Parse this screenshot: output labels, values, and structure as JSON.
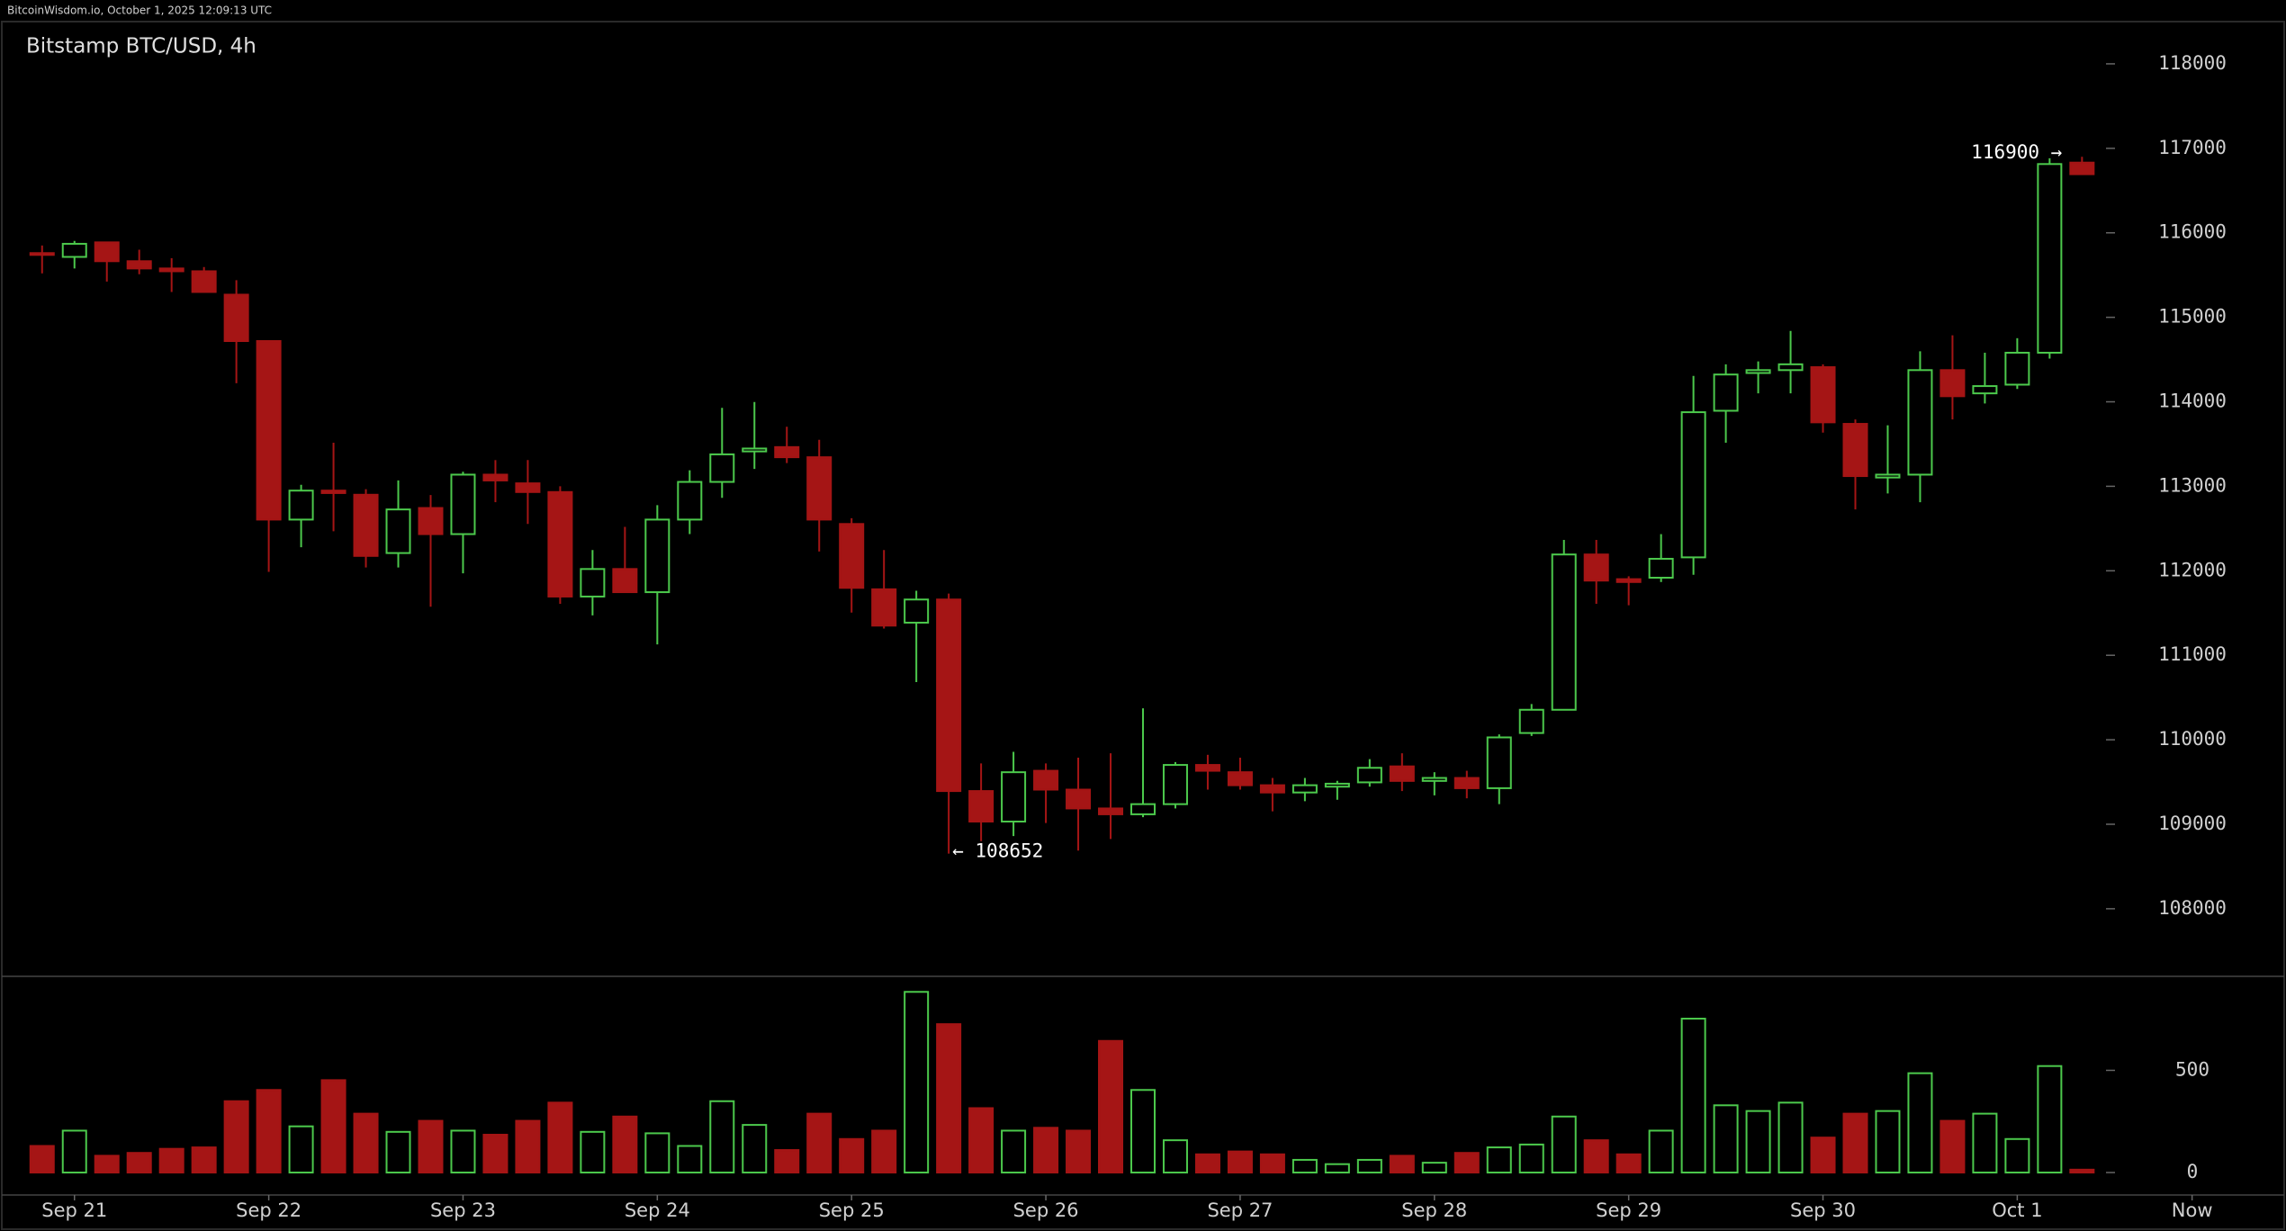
{
  "chart_data": {
    "type": "candlestick",
    "header": "BitcoinWisdom.io, October 1, 2025 12:09:13 UTC",
    "title": "Bitstamp BTC/USD, 4h",
    "up_color": "#4cc94c",
    "down_color": "#a51515",
    "annotations": {
      "low": "← 108652",
      "high": "116900 →"
    },
    "xlim": [
      -1.3,
      69.3
    ],
    "xticks": [
      {
        "value": 1,
        "label": "Sep 21"
      },
      {
        "value": 7,
        "label": "Sep 22"
      },
      {
        "value": 13,
        "label": "Sep 23"
      },
      {
        "value": 19,
        "label": "Sep 24"
      },
      {
        "value": 25,
        "label": "Sep 25"
      },
      {
        "value": 31,
        "label": "Sep 26"
      },
      {
        "value": 37,
        "label": "Sep 27"
      },
      {
        "value": 43,
        "label": "Sep 28"
      },
      {
        "value": 49,
        "label": "Sep 29"
      },
      {
        "value": 55,
        "label": "Sep 30"
      },
      {
        "value": 61,
        "label": "Oct 1"
      },
      {
        "value": 66.4,
        "label": "Now"
      }
    ],
    "ylim": [
      107200,
      118500
    ],
    "yticks": [
      108000,
      109000,
      110000,
      111000,
      112000,
      113000,
      114000,
      115000,
      116000,
      117000,
      118000
    ],
    "volume_ylim": [
      -110,
      960
    ],
    "volume_yticks": [
      0,
      500
    ],
    "open": [
      115760,
      115715,
      115887,
      115664,
      115578,
      115545,
      115268,
      114719,
      112606,
      112949,
      112900,
      112210,
      112743,
      112434,
      113138,
      113035,
      112932,
      111695,
      112021,
      111747,
      112606,
      113052,
      113413,
      113464,
      113344,
      112554,
      111781,
      111386,
      111660,
      109393,
      109032,
      109633,
      109410,
      109187,
      109118,
      109238,
      109702,
      109616,
      109462,
      109376,
      109445,
      109496,
      109685,
      109513,
      109548,
      109427,
      110080,
      110355,
      112193,
      111901,
      111918,
      112159,
      113894,
      114341,
      114375,
      114410,
      113739,
      113104,
      113138,
      114375,
      114100,
      114203,
      114581,
      116831
    ],
    "high": [
      115850,
      115904,
      115887,
      115800,
      115700,
      115595,
      115440,
      114719,
      113018,
      113516,
      112966,
      113069,
      112897,
      113172,
      113310,
      113310,
      113000,
      112245,
      112520,
      112777,
      113190,
      113928,
      113997,
      113705,
      113550,
      112623,
      112245,
      111764,
      111730,
      109720,
      109857,
      109720,
      109788,
      109840,
      110372,
      109736,
      109822,
      109788,
      109548,
      109548,
      109514,
      109771,
      109840,
      109616,
      109633,
      110063,
      110423,
      112365,
      112365,
      111935,
      112434,
      114306,
      114444,
      114478,
      114839,
      114444,
      113791,
      113722,
      114598,
      114787,
      114581,
      114753,
      116883,
      116900
    ],
    "low": [
      115520,
      115578,
      115423,
      115510,
      115300,
      115300,
      114220,
      111987,
      112279,
      112468,
      112039,
      112039,
      111575,
      111970,
      112812,
      112554,
      111609,
      111472,
      111747,
      111128,
      112434,
      112863,
      113206,
      113275,
      112228,
      111506,
      111317,
      110682,
      108652,
      108800,
      108860,
      109015,
      108688,
      108826,
      109084,
      109187,
      109410,
      109410,
      109153,
      109273,
      109290,
      109445,
      109393,
      109342,
      109307,
      109238,
      110045,
      110355,
      111609,
      111592,
      111867,
      111953,
      113516,
      114100,
      114100,
      113636,
      112726,
      112915,
      112812,
      113791,
      113980,
      114152,
      114512,
      116694
    ],
    "close": [
      115740,
      115870,
      115664,
      115578,
      115545,
      115300,
      114719,
      112606,
      112949,
      112920,
      112176,
      112726,
      112434,
      113138,
      113069,
      112932,
      111695,
      112021,
      111747,
      112606,
      113052,
      113378,
      113447,
      113344,
      112606,
      111798,
      111351,
      111660,
      109393,
      109032,
      109616,
      109410,
      109187,
      109118,
      109238,
      109702,
      109633,
      109462,
      109376,
      109462,
      109480,
      109668,
      109513,
      109548,
      109427,
      110028,
      110355,
      112193,
      111884,
      111867,
      112142,
      113877,
      114323,
      114375,
      114444,
      113757,
      113121,
      113138,
      114375,
      114066,
      114186,
      114581,
      116814,
      116694
    ],
    "volume": [
      130,
      205,
      82,
      96,
      116,
      123,
      349,
      404,
      226,
      452,
      288,
      199,
      253,
      205,
      185,
      253,
      342,
      199,
      274,
      192,
      130,
      349,
      233,
      110,
      288,
      164,
      205,
      884,
      726,
      315,
      205,
      219,
      205,
      644,
      404,
      158,
      89,
      103,
      89,
      62,
      41,
      62,
      82,
      48,
      96,
      123,
      137,
      274,
      158,
      89,
      205,
      753,
      329,
      301,
      342,
      171,
      288,
      301,
      486,
      253,
      288,
      164,
      521,
      14
    ]
  }
}
